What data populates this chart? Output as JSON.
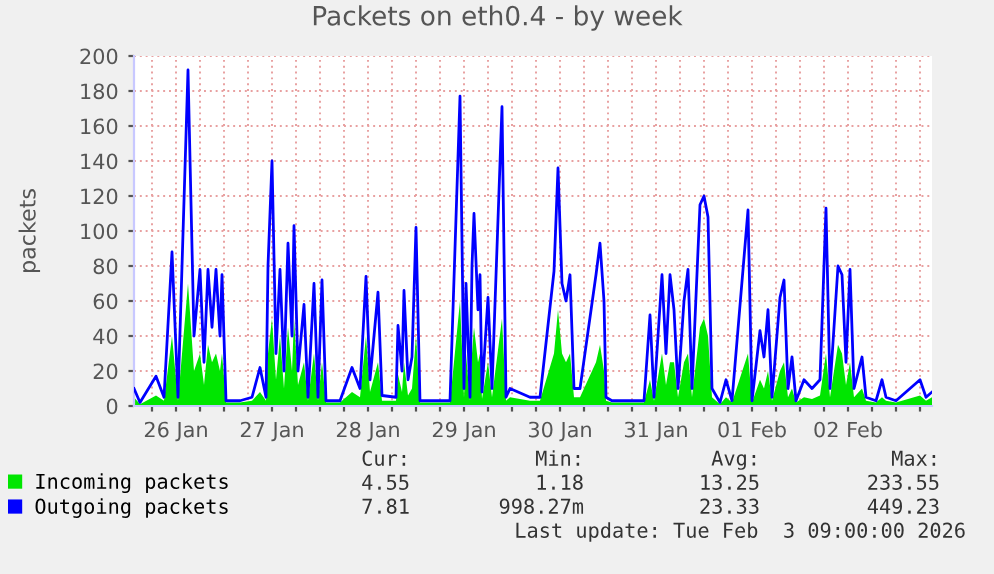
{
  "chart_data": {
    "type": "area",
    "title": "Packets on eth0.4 - by week",
    "ylabel": "packets",
    "x": [
      "2026-01-26T01:30",
      "2026-01-26T03:00",
      "2026-01-26T07:00",
      "2026-01-26T09:00",
      "2026-01-26T11:00",
      "2026-01-26T12:30",
      "2026-01-26T15:00",
      "2026-01-26T16:30",
      "2026-01-26T18:00",
      "2026-01-26T19:00",
      "2026-01-26T20:00",
      "2026-01-26T21:00",
      "2026-01-26T22:00",
      "2026-01-26T23:00",
      "2026-01-26T23:30",
      "2026-01-27T00:30",
      "2026-01-27T04:00",
      "2026-01-27T07:00",
      "2026-01-27T09:00",
      "2026-01-27T10:30",
      "2026-01-27T11:00",
      "2026-01-27T12:00",
      "2026-01-27T13:00",
      "2026-01-27T14:00",
      "2026-01-27T15:00",
      "2026-01-27T16:00",
      "2026-01-27T17:00",
      "2026-01-27T17:30",
      "2026-01-27T18:30",
      "2026-01-27T20:00",
      "2026-01-27T21:00",
      "2026-01-27T22:30",
      "2026-01-27T23:30",
      "2026-01-28T00:30",
      "2026-01-28T01:30",
      "2026-01-28T05:00",
      "2026-01-28T08:00",
      "2026-01-28T10:00",
      "2026-01-28T11:30",
      "2026-01-28T12:30",
      "2026-01-28T14:30",
      "2026-01-28T15:30",
      "2026-01-28T19:00",
      "2026-01-28T19:30",
      "2026-01-28T20:30",
      "2026-01-28T21:00",
      "2026-01-28T22:00",
      "2026-01-28T23:00",
      "2026-01-29T00:00",
      "2026-01-29T01:00",
      "2026-01-29T08:30",
      "2026-01-29T11:00",
      "2026-01-29T12:00",
      "2026-01-29T12:30",
      "2026-01-29T13:30",
      "2026-01-29T14:00",
      "2026-01-29T14:30",
      "2026-01-29T15:30",
      "2026-01-29T16:00",
      "2026-01-29T16:30",
      "2026-01-29T18:00",
      "2026-01-29T19:00",
      "2026-01-29T21:30",
      "2026-01-29T22:30",
      "2026-01-29T23:30",
      "2026-01-30T04:30",
      "2026-01-30T07:00",
      "2026-01-30T10:30",
      "2026-01-30T11:30",
      "2026-01-30T12:30",
      "2026-01-30T13:30",
      "2026-01-30T14:30",
      "2026-01-30T15:30",
      "2026-01-30T17:00",
      "2026-01-30T21:00",
      "2026-01-30T22:00",
      "2026-01-30T23:00",
      "2026-01-30T23:30",
      "2026-01-31T01:00",
      "2026-01-31T04:00",
      "2026-01-31T09:00",
      "2026-01-31T10:30",
      "2026-01-31T11:30",
      "2026-01-31T13:30",
      "2026-01-31T14:30",
      "2026-01-31T15:30",
      "2026-01-31T16:30",
      "2026-01-31T17:30",
      "2026-01-31T19:00",
      "2026-01-31T20:00",
      "2026-01-31T21:00",
      "2026-01-31T23:00",
      "2026-02-01T00:00",
      "2026-02-01T01:00",
      "2026-02-01T02:00",
      "2026-02-01T04:00",
      "2026-02-01T05:30",
      "2026-02-01T07:00",
      "2026-02-01T11:00",
      "2026-02-01T12:00",
      "2026-02-01T14:00",
      "2026-02-01T15:00",
      "2026-02-01T16:00",
      "2026-02-01T17:00",
      "2026-02-01T19:00",
      "2026-02-01T20:00",
      "2026-02-01T21:00",
      "2026-02-01T22:00",
      "2026-02-01T23:00",
      "2026-02-02T01:00",
      "2026-02-02T03:00",
      "2026-02-02T05:00",
      "2026-02-02T06:30",
      "2026-02-02T07:30",
      "2026-02-02T09:30",
      "2026-02-02T10:30",
      "2026-02-02T11:30",
      "2026-02-02T12:30",
      "2026-02-02T13:30",
      "2026-02-02T15:30",
      "2026-02-02T16:30",
      "2026-02-02T19:00",
      "2026-02-02T20:30",
      "2026-02-02T21:30",
      "2026-02-03T00:00",
      "2026-02-03T06:00",
      "2026-02-03T07:30",
      "2026-02-03T09:00"
    ],
    "series": [
      {
        "name": "Incoming packets",
        "color": "#00e600",
        "values": [
          5,
          1,
          6,
          3,
          40,
          3,
          70,
          20,
          30,
          12,
          35,
          25,
          30,
          20,
          30,
          2,
          2,
          3,
          8,
          3,
          30,
          50,
          15,
          40,
          10,
          45,
          20,
          50,
          12,
          25,
          3,
          30,
          3,
          25,
          2,
          2,
          8,
          5,
          40,
          8,
          25,
          3,
          3,
          18,
          8,
          25,
          6,
          10,
          40,
          2,
          2,
          60,
          5,
          30,
          3,
          30,
          45,
          25,
          30,
          4,
          25,
          5,
          50,
          3,
          5,
          3,
          3,
          30,
          55,
          30,
          25,
          30,
          5,
          5,
          25,
          35,
          20,
          3,
          2,
          2,
          2,
          15,
          3,
          30,
          12,
          25,
          25,
          5,
          25,
          30,
          5,
          45,
          50,
          40,
          5,
          1,
          5,
          2,
          30,
          2,
          15,
          10,
          20,
          3,
          20,
          25,
          5,
          10,
          2,
          5,
          4,
          6,
          30,
          5,
          35,
          30,
          12,
          25,
          5,
          10,
          3,
          2,
          5,
          3,
          2,
          6,
          3,
          5
        ]
      },
      {
        "name": "Outgoing packets",
        "type": "line",
        "color": "#0000ff",
        "values": [
          10,
          2,
          17,
          5,
          88,
          5,
          192,
          40,
          78,
          25,
          78,
          45,
          78,
          40,
          75,
          3,
          3,
          5,
          22,
          5,
          80,
          140,
          30,
          78,
          20,
          93,
          40,
          103,
          20,
          58,
          5,
          70,
          5,
          72,
          3,
          3,
          22,
          10,
          74,
          15,
          65,
          6,
          5,
          46,
          20,
          66,
          15,
          28,
          102,
          3,
          3,
          177,
          10,
          70,
          5,
          80,
          110,
          55,
          75,
          8,
          62,
          10,
          171,
          5,
          10,
          5,
          5,
          77,
          136,
          70,
          60,
          75,
          10,
          10,
          75,
          93,
          60,
          5,
          3,
          3,
          3,
          52,
          5,
          75,
          30,
          75,
          55,
          10,
          60,
          78,
          10,
          115,
          120,
          108,
          10,
          2,
          15,
          3,
          112,
          3,
          43,
          28,
          55,
          5,
          62,
          72,
          10,
          28,
          3,
          15,
          10,
          15,
          113,
          10,
          80,
          75,
          25,
          78,
          10,
          28,
          5,
          3,
          15,
          5,
          3,
          15,
          5,
          8
        ]
      }
    ],
    "xlim": [
      "2026-01-26T01:30",
      "2026-02-03T09:00"
    ],
    "xticks": [
      {
        "value": "2026-01-26T06:00",
        "label": null
      },
      {
        "value": "2026-01-26T12:00",
        "label": "26 Jan"
      },
      {
        "value": "2026-01-26T18:00",
        "label": null
      },
      {
        "value": "2026-01-27T00:00",
        "label": null
      },
      {
        "value": "2026-01-27T06:00",
        "label": null
      },
      {
        "value": "2026-01-27T12:00",
        "label": "27 Jan"
      },
      {
        "value": "2026-01-27T18:00",
        "label": null
      },
      {
        "value": "2026-01-28T00:00",
        "label": null
      },
      {
        "value": "2026-01-28T06:00",
        "label": null
      },
      {
        "value": "2026-01-28T12:00",
        "label": "28 Jan"
      },
      {
        "value": "2026-01-28T18:00",
        "label": null
      },
      {
        "value": "2026-01-29T00:00",
        "label": null
      },
      {
        "value": "2026-01-29T06:00",
        "label": null
      },
      {
        "value": "2026-01-29T12:00",
        "label": "29 Jan"
      },
      {
        "value": "2026-01-29T18:00",
        "label": null
      },
      {
        "value": "2026-01-30T00:00",
        "label": null
      },
      {
        "value": "2026-01-30T06:00",
        "label": null
      },
      {
        "value": "2026-01-30T12:00",
        "label": "30 Jan"
      },
      {
        "value": "2026-01-30T18:00",
        "label": null
      },
      {
        "value": "2026-01-31T00:00",
        "label": null
      },
      {
        "value": "2026-01-31T06:00",
        "label": null
      },
      {
        "value": "2026-01-31T12:00",
        "label": "31 Jan"
      },
      {
        "value": "2026-01-31T18:00",
        "label": null
      },
      {
        "value": "2026-02-01T00:00",
        "label": null
      },
      {
        "value": "2026-02-01T06:00",
        "label": null
      },
      {
        "value": "2026-02-01T12:00",
        "label": "01 Feb"
      },
      {
        "value": "2026-02-01T18:00",
        "label": null
      },
      {
        "value": "2026-02-02T00:00",
        "label": null
      },
      {
        "value": "2026-02-02T06:00",
        "label": null
      },
      {
        "value": "2026-02-02T12:00",
        "label": "02 Feb"
      },
      {
        "value": "2026-02-02T18:00",
        "label": null
      },
      {
        "value": "2026-02-03T00:00",
        "label": null
      },
      {
        "value": "2026-02-03T06:00",
        "label": null
      }
    ],
    "ylim": [
      0,
      200
    ],
    "yticks": [
      0,
      20,
      40,
      60,
      80,
      100,
      120,
      140,
      160,
      180,
      200
    ],
    "grid": true,
    "legend": "bottom left",
    "annotations": [
      "Cur:",
      "Min:",
      "Avg:",
      "Max:",
      "4.55",
      "1.18",
      "13.25",
      "233.55",
      "7.81",
      "998.27m",
      "23.33",
      "449.23",
      "Last update: Tue Feb  3 09:00:00 2026"
    ]
  }
}
